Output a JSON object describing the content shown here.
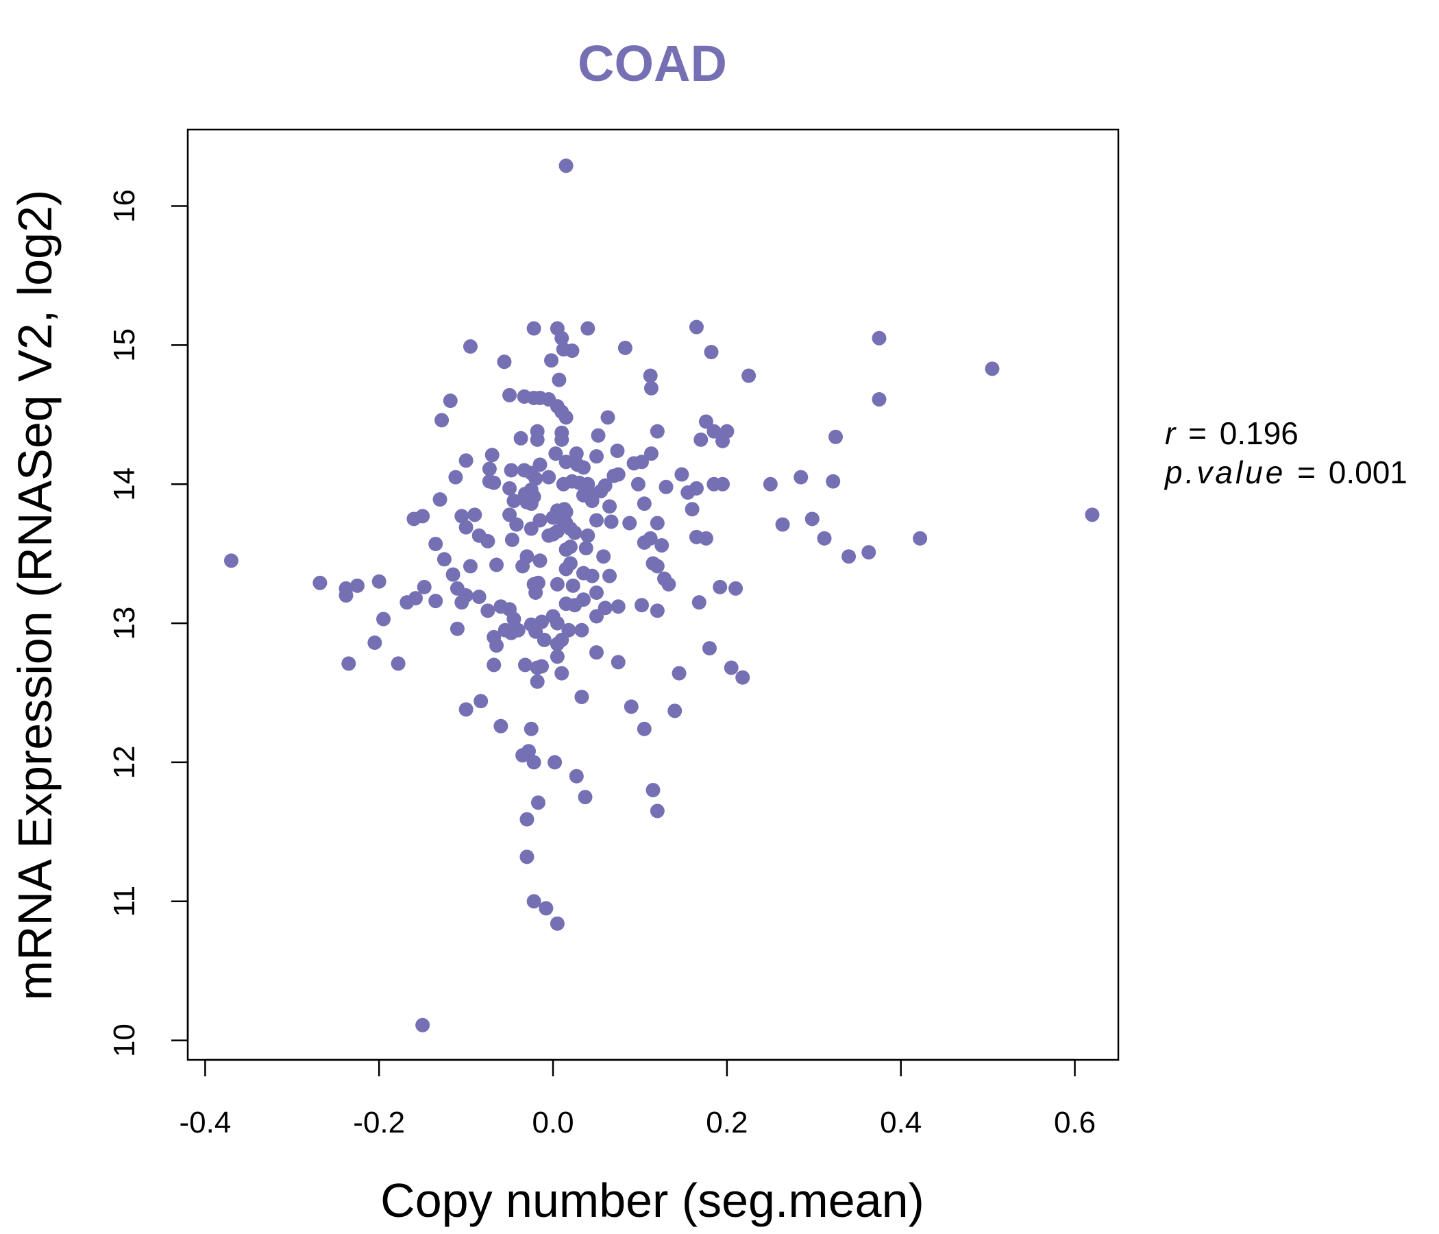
{
  "chart_data": {
    "type": "scatter",
    "title": "COAD",
    "xlabel": "Copy number (seg.mean)",
    "ylabel": "mRNA Expression (RNASeq V2, log2)",
    "xlim": [
      -0.42,
      0.65
    ],
    "ylim": [
      9.86,
      16.55
    ],
    "x_ticks": [
      -0.4,
      -0.2,
      0.0,
      0.2,
      0.4,
      0.6
    ],
    "x_tick_labels": [
      "-0.4",
      "-0.2",
      "0.0",
      "0.2",
      "0.4",
      "0.6"
    ],
    "y_ticks": [
      10,
      11,
      12,
      13,
      14,
      15,
      16
    ],
    "y_tick_labels": [
      "10",
      "11",
      "12",
      "13",
      "14",
      "15",
      "16"
    ],
    "grid": false,
    "stats": {
      "r_label": "r",
      "r_value": "0.196",
      "p_label": "p.value",
      "p_value": "0.001"
    },
    "series": [
      {
        "color": "#7570B3",
        "points": [
          [
            0.015,
            16.29
          ],
          [
            -0.022,
            15.12
          ],
          [
            0.005,
            15.12
          ],
          [
            0.04,
            15.12
          ],
          [
            0.165,
            15.13
          ],
          [
            0.01,
            15.05
          ],
          [
            0.375,
            15.05
          ],
          [
            0.012,
            14.97
          ],
          [
            0.022,
            14.96
          ],
          [
            -0.095,
            14.99
          ],
          [
            0.083,
            14.98
          ],
          [
            0.182,
            14.95
          ],
          [
            -0.002,
            14.89
          ],
          [
            -0.056,
            14.88
          ],
          [
            0.505,
            14.83
          ],
          [
            0.225,
            14.78
          ],
          [
            0.112,
            14.78
          ],
          [
            0.007,
            14.75
          ],
          [
            0.113,
            14.69
          ],
          [
            -0.05,
            14.64
          ],
          [
            -0.033,
            14.63
          ],
          [
            -0.022,
            14.62
          ],
          [
            -0.015,
            14.62
          ],
          [
            -0.005,
            14.61
          ],
          [
            0.375,
            14.61
          ],
          [
            -0.118,
            14.6
          ],
          [
            0.005,
            14.56
          ],
          [
            0.01,
            14.52
          ],
          [
            0.015,
            14.48
          ],
          [
            0.063,
            14.48
          ],
          [
            -0.128,
            14.46
          ],
          [
            0.176,
            14.45
          ],
          [
            0.185,
            14.38
          ],
          [
            0.2,
            14.38
          ],
          [
            0.12,
            14.38
          ],
          [
            0.01,
            14.37
          ],
          [
            -0.018,
            14.38
          ],
          [
            0.052,
            14.35
          ],
          [
            0.325,
            14.34
          ],
          [
            -0.037,
            14.33
          ],
          [
            0.17,
            14.32
          ],
          [
            0.195,
            14.31
          ],
          [
            -0.018,
            14.32
          ],
          [
            0.01,
            14.32
          ],
          [
            0.074,
            14.24
          ],
          [
            0.003,
            14.22
          ],
          [
            0.027,
            14.22
          ],
          [
            0.113,
            14.22
          ],
          [
            -0.07,
            14.21
          ],
          [
            0.05,
            14.2
          ],
          [
            -0.1,
            14.17
          ],
          [
            0.015,
            14.16
          ],
          [
            0.102,
            14.16
          ],
          [
            -0.015,
            14.14
          ],
          [
            0.028,
            14.14
          ],
          [
            0.035,
            14.12
          ],
          [
            0.093,
            14.15
          ],
          [
            -0.033,
            14.1
          ],
          [
            -0.048,
            14.1
          ],
          [
            -0.073,
            14.11
          ],
          [
            -0.025,
            14.08
          ],
          [
            0.075,
            14.07
          ],
          [
            0.148,
            14.07
          ],
          [
            0.285,
            14.05
          ],
          [
            0.07,
            14.06
          ],
          [
            -0.112,
            14.05
          ],
          [
            -0.005,
            14.05
          ],
          [
            -0.02,
            14.04
          ],
          [
            0.022,
            14.02
          ],
          [
            0.03,
            14.01
          ],
          [
            -0.073,
            14.02
          ],
          [
            -0.068,
            14.01
          ],
          [
            0.322,
            14.02
          ],
          [
            0.012,
            14.0
          ],
          [
            0.098,
            14.0
          ],
          [
            0.25,
            14.0
          ],
          [
            0.185,
            14.0
          ],
          [
            0.195,
            14.0
          ],
          [
            0.04,
            14.0
          ],
          [
            0.06,
            13.99
          ],
          [
            0.13,
            13.98
          ],
          [
            -0.05,
            13.97
          ],
          [
            0.165,
            13.97
          ],
          [
            -0.025,
            13.96
          ],
          [
            0.055,
            13.95
          ],
          [
            0.155,
            13.94
          ],
          [
            0.045,
            13.93
          ],
          [
            -0.032,
            13.93
          ],
          [
            0.035,
            13.92
          ],
          [
            -0.022,
            13.91
          ],
          [
            -0.13,
            13.89
          ],
          [
            0.045,
            13.88
          ],
          [
            -0.045,
            13.88
          ],
          [
            -0.03,
            13.87
          ],
          [
            -0.025,
            13.86
          ],
          [
            0.105,
            13.86
          ],
          [
            0.065,
            13.84
          ],
          [
            0.16,
            13.82
          ],
          [
            0.013,
            13.82
          ],
          [
            0.005,
            13.81
          ],
          [
            0.015,
            13.8
          ],
          [
            -0.09,
            13.78
          ],
          [
            -0.05,
            13.78
          ],
          [
            0.62,
            13.78
          ],
          [
            -0.105,
            13.77
          ],
          [
            -0.15,
            13.77
          ],
          [
            -0.16,
            13.75
          ],
          [
            0.0,
            13.76
          ],
          [
            0.01,
            13.75
          ],
          [
            0.298,
            13.75
          ],
          [
            -0.015,
            13.74
          ],
          [
            0.05,
            13.74
          ],
          [
            0.067,
            13.73
          ],
          [
            0.088,
            13.72
          ],
          [
            0.12,
            13.72
          ],
          [
            0.015,
            13.72
          ],
          [
            -0.042,
            13.71
          ],
          [
            0.264,
            13.71
          ],
          [
            -0.1,
            13.69
          ],
          [
            0.02,
            13.68
          ],
          [
            -0.025,
            13.68
          ],
          [
            0.005,
            13.66
          ],
          [
            0.025,
            13.65
          ],
          [
            0.0,
            13.64
          ],
          [
            -0.005,
            13.63
          ],
          [
            -0.085,
            13.63
          ],
          [
            0.04,
            13.63
          ],
          [
            0.165,
            13.62
          ],
          [
            0.176,
            13.61
          ],
          [
            0.312,
            13.61
          ],
          [
            0.422,
            13.61
          ],
          [
            0.112,
            13.61
          ],
          [
            -0.047,
            13.6
          ],
          [
            -0.075,
            13.59
          ],
          [
            0.105,
            13.58
          ],
          [
            -0.135,
            13.57
          ],
          [
            0.125,
            13.56
          ],
          [
            0.02,
            13.55
          ],
          [
            0.038,
            13.54
          ],
          [
            0.015,
            13.53
          ],
          [
            0.363,
            13.51
          ],
          [
            0.34,
            13.48
          ],
          [
            -0.03,
            13.48
          ],
          [
            0.058,
            13.48
          ],
          [
            -0.125,
            13.46
          ],
          [
            -0.015,
            13.45
          ],
          [
            0.02,
            13.43
          ],
          [
            0.115,
            13.43
          ],
          [
            -0.065,
            13.42
          ],
          [
            -0.095,
            13.41
          ],
          [
            0.12,
            13.41
          ],
          [
            0.015,
            13.39
          ],
          [
            -0.035,
            13.41
          ],
          [
            0.035,
            13.36
          ],
          [
            -0.115,
            13.35
          ],
          [
            0.045,
            13.34
          ],
          [
            0.065,
            13.34
          ],
          [
            0.128,
            13.32
          ],
          [
            0.133,
            13.28
          ],
          [
            -0.017,
            13.29
          ],
          [
            0.005,
            13.28
          ],
          [
            -0.022,
            13.28
          ],
          [
            -0.2,
            13.3
          ],
          [
            -0.268,
            13.29
          ],
          [
            -0.225,
            13.27
          ],
          [
            -0.148,
            13.26
          ],
          [
            -0.11,
            13.25
          ],
          [
            0.192,
            13.26
          ],
          [
            0.21,
            13.25
          ],
          [
            0.023,
            13.27
          ],
          [
            -0.238,
            13.25
          ],
          [
            -0.02,
            13.22
          ],
          [
            0.05,
            13.22
          ],
          [
            -0.1,
            13.2
          ],
          [
            -0.085,
            13.19
          ],
          [
            -0.158,
            13.18
          ],
          [
            -0.238,
            13.2
          ],
          [
            0.035,
            13.17
          ],
          [
            -0.135,
            13.16
          ],
          [
            -0.168,
            13.15
          ],
          [
            0.168,
            13.15
          ],
          [
            0.015,
            13.14
          ],
          [
            -0.105,
            13.15
          ],
          [
            0.025,
            13.13
          ],
          [
            0.075,
            13.12
          ],
          [
            0.102,
            13.13
          ],
          [
            -0.06,
            13.12
          ],
          [
            -0.05,
            13.1
          ],
          [
            0.06,
            13.11
          ],
          [
            -0.075,
            13.09
          ],
          [
            0.12,
            13.09
          ],
          [
            0.05,
            13.05
          ],
          [
            0.0,
            13.05
          ],
          [
            -0.195,
            13.03
          ],
          [
            -0.045,
            13.03
          ],
          [
            -0.013,
            13.01
          ],
          [
            -0.025,
            12.99
          ],
          [
            0.005,
            13.0
          ],
          [
            -0.04,
            12.95
          ],
          [
            -0.055,
            12.95
          ],
          [
            -0.048,
            12.93
          ],
          [
            -0.11,
            12.96
          ],
          [
            -0.02,
            12.94
          ],
          [
            0.018,
            12.95
          ],
          [
            0.033,
            12.95
          ],
          [
            -0.068,
            12.9
          ],
          [
            -0.01,
            12.88
          ],
          [
            0.01,
            12.88
          ],
          [
            -0.205,
            12.86
          ],
          [
            -0.065,
            12.84
          ],
          [
            0.005,
            12.85
          ],
          [
            0.18,
            12.82
          ],
          [
            0.05,
            12.79
          ],
          [
            0.005,
            12.76
          ],
          [
            0.075,
            12.72
          ],
          [
            -0.178,
            12.71
          ],
          [
            -0.235,
            12.71
          ],
          [
            -0.032,
            12.7
          ],
          [
            -0.068,
            12.7
          ],
          [
            -0.013,
            12.69
          ],
          [
            -0.018,
            12.68
          ],
          [
            0.205,
            12.68
          ],
          [
            0.145,
            12.64
          ],
          [
            0.01,
            12.64
          ],
          [
            0.218,
            12.61
          ],
          [
            -0.018,
            12.58
          ],
          [
            0.033,
            12.47
          ],
          [
            -0.083,
            12.44
          ],
          [
            0.09,
            12.4
          ],
          [
            -0.1,
            12.38
          ],
          [
            0.14,
            12.37
          ],
          [
            -0.06,
            12.26
          ],
          [
            0.105,
            12.24
          ],
          [
            -0.025,
            12.24
          ],
          [
            -0.028,
            12.08
          ],
          [
            -0.035,
            12.05
          ],
          [
            -0.022,
            12.0
          ],
          [
            0.002,
            12.0
          ],
          [
            0.027,
            11.9
          ],
          [
            0.115,
            11.8
          ],
          [
            0.037,
            11.75
          ],
          [
            -0.017,
            11.71
          ],
          [
            0.12,
            11.65
          ],
          [
            -0.03,
            11.59
          ],
          [
            -0.03,
            11.32
          ],
          [
            -0.022,
            11.0
          ],
          [
            -0.008,
            10.95
          ],
          [
            0.005,
            10.84
          ],
          [
            -0.15,
            10.11
          ],
          [
            -0.37,
            13.45
          ]
        ]
      }
    ]
  }
}
